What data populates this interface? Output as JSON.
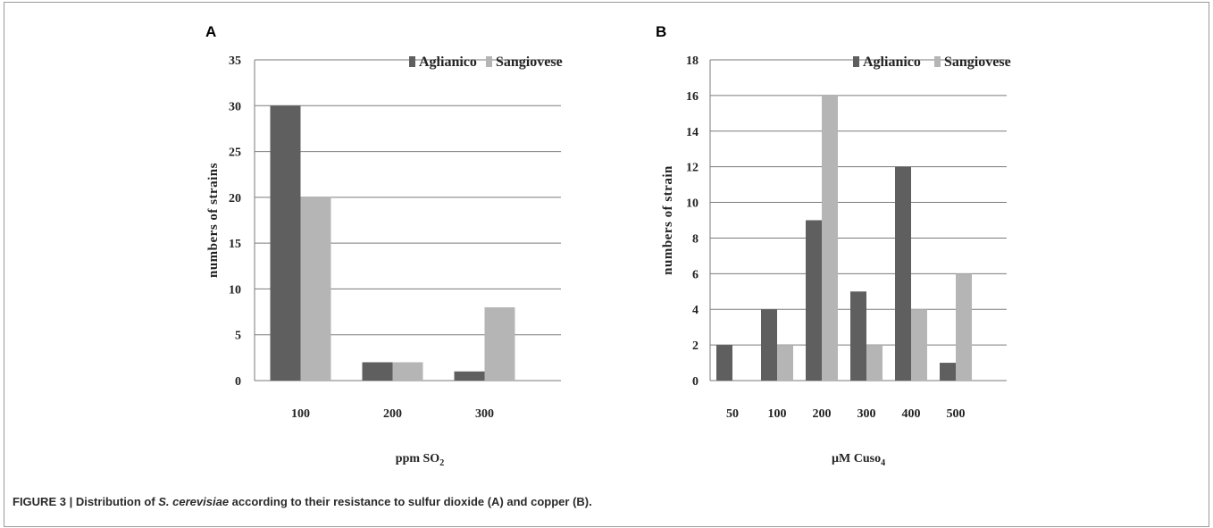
{
  "caption": {
    "label": "FIGURE 3 | ",
    "pre": "Distribution of ",
    "species": "S. cerevisiae",
    "post": " according to their resistance to sulfur dioxide (A) and copper (B)."
  },
  "colors": {
    "Aglianico": "#5f5f5f",
    "Sangiovese": "#b5b5b5"
  },
  "chart_data": [
    {
      "type": "bar",
      "panel": "A",
      "categories": [
        "100",
        "200",
        "300"
      ],
      "series": [
        {
          "name": "Aglianico",
          "values": [
            30,
            2,
            1
          ]
        },
        {
          "name": "Sangiovese",
          "values": [
            20,
            2,
            8
          ]
        }
      ],
      "ylabel": "numbers of strains",
      "xlabel_main": "ppm SO",
      "xlabel_sub": "2",
      "ylim": [
        0,
        35
      ],
      "yticks": [
        0,
        5,
        10,
        15,
        20,
        25,
        30,
        35
      ],
      "grid": true,
      "legend_position": "top-right"
    },
    {
      "type": "bar",
      "panel": "B",
      "categories": [
        "50",
        "100",
        "200",
        "300",
        "400",
        "500"
      ],
      "series": [
        {
          "name": "Aglianico",
          "values": [
            2,
            4,
            9,
            5,
            12,
            1
          ]
        },
        {
          "name": "Sangiovese",
          "values": [
            0,
            2,
            16,
            2,
            4,
            6
          ]
        }
      ],
      "ylabel": "numbers of strain",
      "xlabel_main": "µM Cuso",
      "xlabel_sub": "4",
      "ylim": [
        0,
        18
      ],
      "yticks": [
        0,
        2,
        4,
        6,
        8,
        10,
        12,
        14,
        16,
        18
      ],
      "grid": true,
      "legend_position": "top-right"
    }
  ]
}
